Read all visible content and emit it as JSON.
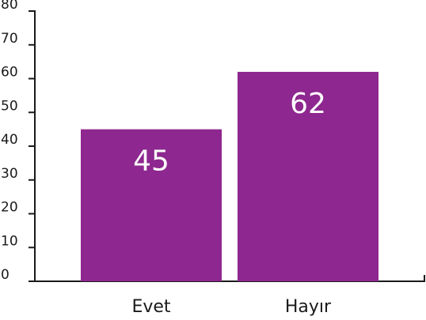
{
  "chart_data": {
    "type": "bar",
    "categories": [
      "Evet",
      "Hayır"
    ],
    "values": [
      45,
      62
    ],
    "color": "#8e278f",
    "ylim": [
      0,
      80
    ],
    "yticks": [
      0,
      10,
      20,
      30,
      40,
      50,
      60,
      70,
      80
    ],
    "grid": false
  }
}
